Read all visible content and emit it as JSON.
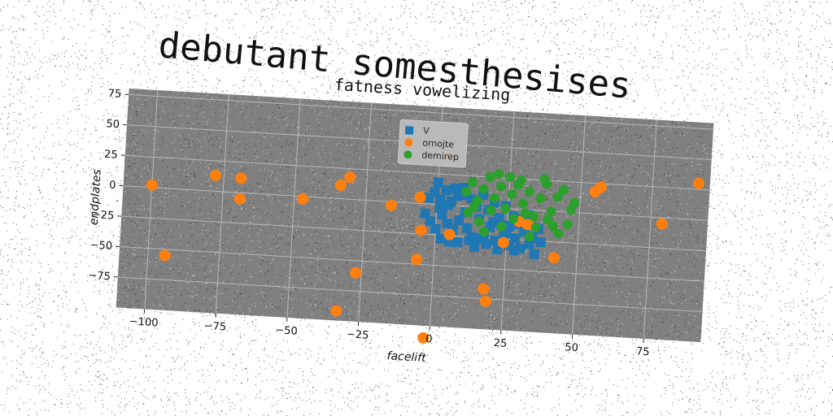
{
  "figure": {
    "suptitle": "debutant somesthesises"
  },
  "chart_data": {
    "type": "scatter",
    "title": "fatness vowelizing",
    "xlabel": "facelift",
    "ylabel": "endplates",
    "xlim": [
      -110,
      95
    ],
    "ylim": [
      -100,
      80
    ],
    "xticks": [
      -100,
      -75,
      -50,
      -25,
      0,
      25,
      50,
      75
    ],
    "yticks": [
      -75,
      -50,
      -25,
      0,
      25,
      50,
      75
    ],
    "grid": true,
    "legend_position": "top-center",
    "background_color": "#808080",
    "series": [
      {
        "name": "V",
        "marker": "square",
        "color": "#1f77b4",
        "points": [
          [
            -3,
            5
          ],
          [
            -1,
            10
          ],
          [
            0,
            18
          ],
          [
            1,
            -3
          ],
          [
            2,
            -8
          ],
          [
            3,
            12
          ],
          [
            4,
            -15
          ],
          [
            5,
            3
          ],
          [
            6,
            -20
          ],
          [
            7,
            8
          ],
          [
            8,
            -12
          ],
          [
            9,
            15
          ],
          [
            10,
            -5
          ],
          [
            11,
            -18
          ],
          [
            12,
            6
          ],
          [
            13,
            -25
          ],
          [
            14,
            0
          ],
          [
            15,
            -10
          ],
          [
            16,
            10
          ],
          [
            17,
            -22
          ],
          [
            18,
            -2
          ],
          [
            19,
            -16
          ],
          [
            20,
            4
          ],
          [
            21,
            -27
          ],
          [
            22,
            -8
          ],
          [
            23,
            -14
          ],
          [
            24,
            2
          ],
          [
            25,
            -20
          ],
          [
            26,
            -30
          ],
          [
            27,
            -6
          ],
          [
            28,
            -24
          ],
          [
            29,
            -12
          ],
          [
            30,
            -32
          ],
          [
            31,
            -18
          ],
          [
            32,
            -4
          ],
          [
            33,
            -28
          ],
          [
            34,
            -22
          ],
          [
            35,
            -36
          ],
          [
            36,
            -15
          ],
          [
            37,
            -26
          ],
          [
            0,
            -20
          ],
          [
            2,
            -28
          ],
          [
            4,
            0
          ],
          [
            6,
            14
          ],
          [
            8,
            -30
          ],
          [
            10,
            9
          ],
          [
            12,
            -28
          ],
          [
            14,
            -33
          ],
          [
            16,
            -26
          ],
          [
            18,
            -30
          ],
          [
            20,
            -12
          ],
          [
            22,
            -34
          ],
          [
            24,
            -22
          ],
          [
            26,
            -14
          ],
          [
            28,
            -34
          ],
          [
            30,
            -8
          ],
          [
            -2,
            -14
          ],
          [
            -4,
            -8
          ],
          [
            1,
            4
          ],
          [
            5,
            -30
          ]
        ]
      },
      {
        "name": "ornojte",
        "marker": "circle",
        "color": "#ff7f0e",
        "points": [
          [
            -100,
            2
          ],
          [
            -94,
            -55
          ],
          [
            -78,
            13
          ],
          [
            -69,
            12
          ],
          [
            -69,
            -5
          ],
          [
            -47,
            -2
          ],
          [
            -34,
            11
          ],
          [
            -31,
            18
          ],
          [
            -33,
            -92
          ],
          [
            -27,
            -60
          ],
          [
            -16,
            -3
          ],
          [
            -6,
            5
          ],
          [
            -6,
            -46
          ],
          [
            -5,
            -22
          ],
          [
            -2,
            -110
          ],
          [
            5,
            -24
          ],
          [
            18,
            -67
          ],
          [
            19,
            -77
          ],
          [
            24,
            -28
          ],
          [
            42,
            -38
          ],
          [
            55,
            18
          ],
          [
            57,
            22
          ],
          [
            79,
            -5
          ],
          [
            91,
            30
          ],
          [
            3,
            40
          ],
          [
            29,
            -10
          ],
          [
            32,
            -12
          ]
        ]
      },
      {
        "name": "demirep",
        "marker": "circle",
        "color": "#2ca02c",
        "points": [
          [
            10,
            12
          ],
          [
            12,
            20
          ],
          [
            14,
            5
          ],
          [
            16,
            15
          ],
          [
            18,
            25
          ],
          [
            20,
            8
          ],
          [
            22,
            18
          ],
          [
            24,
            0
          ],
          [
            26,
            12
          ],
          [
            28,
            20
          ],
          [
            30,
            5
          ],
          [
            32,
            15
          ],
          [
            34,
            -5
          ],
          [
            36,
            10
          ],
          [
            38,
            22
          ],
          [
            40,
            0
          ],
          [
            42,
            12
          ],
          [
            44,
            18
          ],
          [
            46,
            -10
          ],
          [
            48,
            8
          ],
          [
            11,
            -5
          ],
          [
            15,
            -12
          ],
          [
            19,
            -2
          ],
          [
            23,
            -15
          ],
          [
            27,
            -8
          ],
          [
            31,
            -3
          ],
          [
            35,
            -14
          ],
          [
            39,
            -7
          ],
          [
            43,
            -18
          ],
          [
            47,
            2
          ],
          [
            21,
            28
          ],
          [
            29,
            24
          ],
          [
            37,
            26
          ],
          [
            17,
            -20
          ],
          [
            33,
            -22
          ],
          [
            41,
            -12
          ],
          [
            25,
            26
          ],
          [
            13,
            0
          ]
        ]
      }
    ]
  }
}
